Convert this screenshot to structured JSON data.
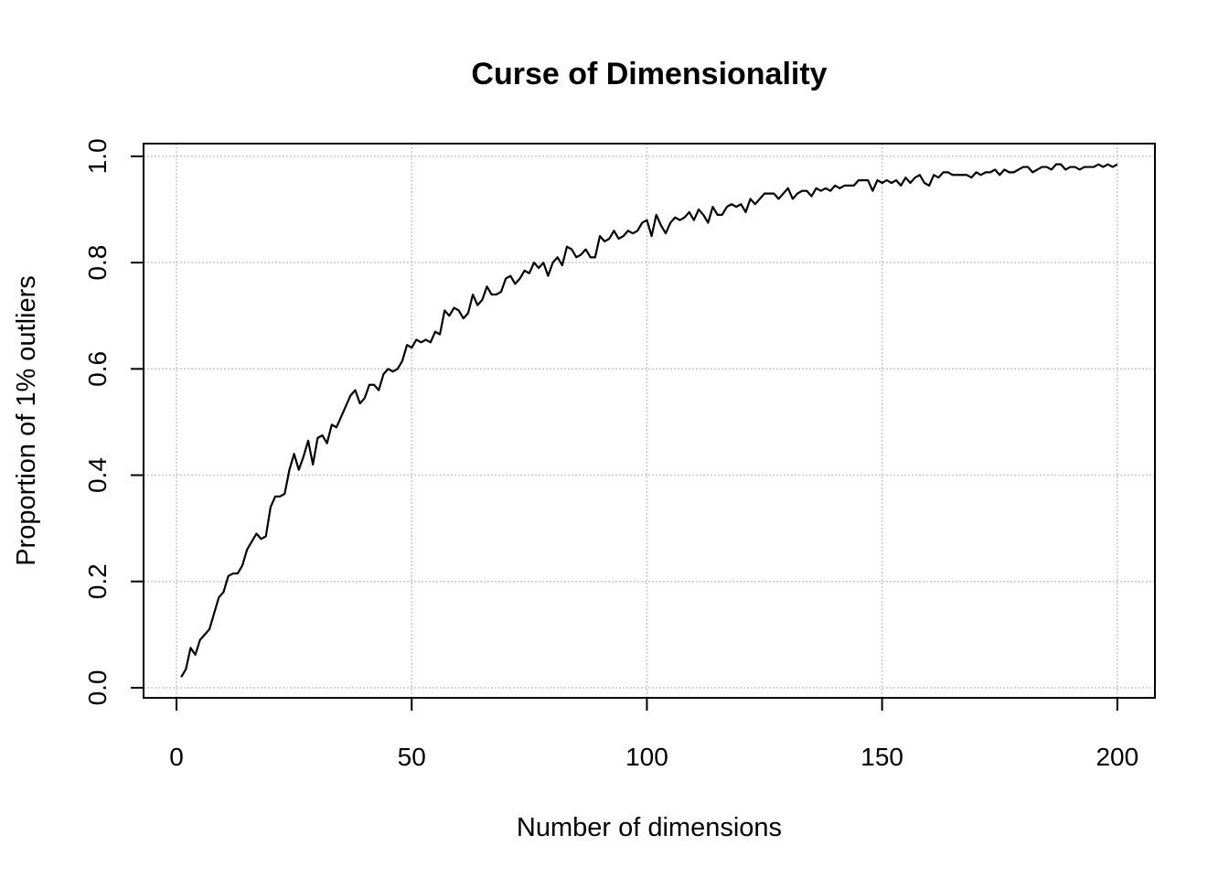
{
  "chart_data": {
    "type": "line",
    "title": "Curse of Dimensionality",
    "x_label": "Number of dimensions",
    "y_label": "Proportion of 1% outliers",
    "color": "#000000",
    "grid": true,
    "xlim": [
      -7,
      208
    ],
    "ylim": [
      -0.019,
      1.024
    ],
    "xticks": [
      0,
      50,
      100,
      150,
      200
    ],
    "yticks": [
      {
        "value": 0,
        "label": "0.0"
      },
      0.2,
      0.4,
      0.6,
      0.8,
      {
        "value": 1,
        "label": "1.0"
      }
    ],
    "x": [
      1,
      2,
      3,
      4,
      5,
      6,
      7,
      8,
      9,
      10,
      11,
      12,
      13,
      14,
      15,
      16,
      17,
      18,
      19,
      20,
      21,
      22,
      23,
      24,
      25,
      26,
      27,
      28,
      29,
      30,
      31,
      32,
      33,
      34,
      35,
      36,
      37,
      38,
      39,
      40,
      41,
      42,
      43,
      44,
      45,
      46,
      47,
      48,
      49,
      50,
      51,
      52,
      53,
      54,
      55,
      56,
      57,
      58,
      59,
      60,
      61,
      62,
      63,
      64,
      65,
      66,
      67,
      68,
      69,
      70,
      71,
      72,
      73,
      74,
      75,
      76,
      77,
      78,
      79,
      80,
      81,
      82,
      83,
      84,
      85,
      86,
      87,
      88,
      89,
      90,
      91,
      92,
      93,
      94,
      95,
      96,
      97,
      98,
      99,
      100,
      101,
      102,
      103,
      104,
      105,
      106,
      107,
      108,
      109,
      110,
      111,
      112,
      113,
      114,
      115,
      116,
      117,
      118,
      119,
      120,
      121,
      122,
      123,
      124,
      125,
      126,
      127,
      128,
      129,
      130,
      131,
      132,
      133,
      134,
      135,
      136,
      137,
      138,
      139,
      140,
      141,
      142,
      143,
      144,
      145,
      146,
      147,
      148,
      149,
      150,
      151,
      152,
      153,
      154,
      155,
      156,
      157,
      158,
      159,
      160,
      161,
      162,
      163,
      164,
      165,
      166,
      167,
      168,
      169,
      170,
      171,
      172,
      173,
      174,
      175,
      176,
      177,
      178,
      179,
      180,
      181,
      182,
      183,
      184,
      185,
      186,
      187,
      188,
      189,
      190,
      191,
      192,
      193,
      194,
      195,
      196,
      197,
      198,
      199,
      200
    ],
    "values": [
      0.02,
      0.035,
      0.075,
      0.062,
      0.09,
      0.1,
      0.11,
      0.14,
      0.17,
      0.18,
      0.21,
      0.215,
      0.215,
      0.23,
      0.26,
      0.275,
      0.29,
      0.28,
      0.285,
      0.34,
      0.36,
      0.36,
      0.365,
      0.41,
      0.44,
      0.41,
      0.435,
      0.465,
      0.42,
      0.47,
      0.475,
      0.46,
      0.495,
      0.49,
      0.51,
      0.53,
      0.55,
      0.56,
      0.535,
      0.545,
      0.57,
      0.57,
      0.56,
      0.59,
      0.6,
      0.595,
      0.6,
      0.615,
      0.645,
      0.64,
      0.655,
      0.65,
      0.655,
      0.65,
      0.67,
      0.665,
      0.71,
      0.7,
      0.715,
      0.71,
      0.695,
      0.705,
      0.74,
      0.72,
      0.73,
      0.755,
      0.74,
      0.74,
      0.745,
      0.77,
      0.775,
      0.76,
      0.77,
      0.785,
      0.78,
      0.8,
      0.79,
      0.8,
      0.775,
      0.8,
      0.81,
      0.795,
      0.83,
      0.825,
      0.81,
      0.815,
      0.825,
      0.81,
      0.81,
      0.85,
      0.84,
      0.845,
      0.86,
      0.845,
      0.85,
      0.86,
      0.855,
      0.86,
      0.875,
      0.88,
      0.85,
      0.89,
      0.87,
      0.855,
      0.875,
      0.885,
      0.88,
      0.885,
      0.895,
      0.88,
      0.9,
      0.89,
      0.875,
      0.905,
      0.89,
      0.89,
      0.905,
      0.91,
      0.905,
      0.91,
      0.895,
      0.92,
      0.91,
      0.92,
      0.93,
      0.93,
      0.93,
      0.92,
      0.93,
      0.94,
      0.92,
      0.93,
      0.935,
      0.935,
      0.925,
      0.94,
      0.935,
      0.94,
      0.935,
      0.945,
      0.94,
      0.945,
      0.945,
      0.945,
      0.955,
      0.955,
      0.955,
      0.935,
      0.955,
      0.95,
      0.955,
      0.95,
      0.955,
      0.945,
      0.96,
      0.95,
      0.96,
      0.965,
      0.95,
      0.945,
      0.965,
      0.96,
      0.97,
      0.97,
      0.965,
      0.965,
      0.965,
      0.965,
      0.96,
      0.97,
      0.965,
      0.97,
      0.97,
      0.975,
      0.965,
      0.975,
      0.97,
      0.97,
      0.975,
      0.98,
      0.98,
      0.97,
      0.975,
      0.98,
      0.98,
      0.975,
      0.985,
      0.985,
      0.975,
      0.98,
      0.98,
      0.975,
      0.98,
      0.98,
      0.98,
      0.985,
      0.98,
      0.985,
      0.98,
      0.985
    ]
  }
}
